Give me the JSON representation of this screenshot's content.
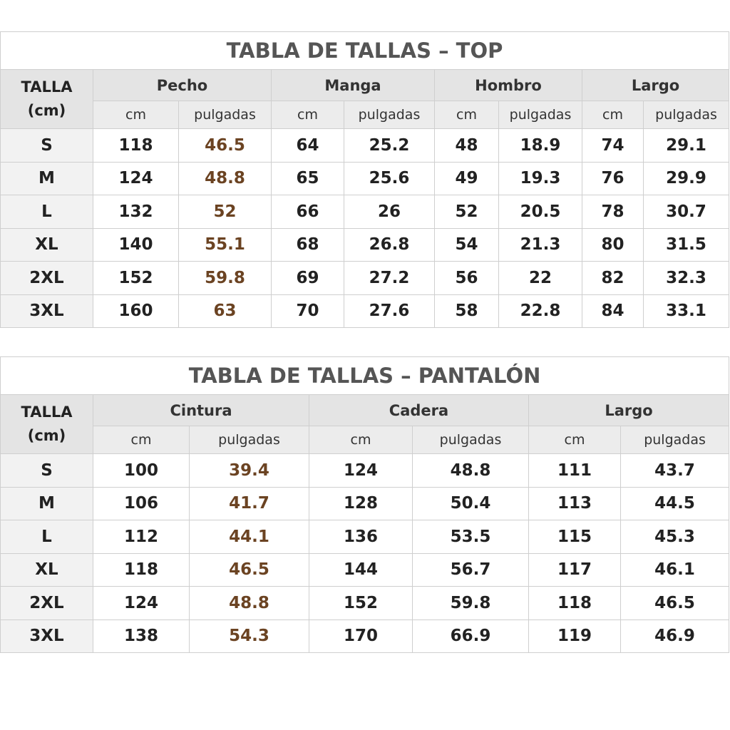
{
  "tables": [
    {
      "title": "TABLA DE TALLAS – TOP",
      "size_header": [
        "TALLA",
        "(cm)"
      ],
      "groups": [
        {
          "name": "Pecho",
          "units": [
            "cm",
            "pulgadas"
          ]
        },
        {
          "name": "Manga",
          "units": [
            "cm",
            "pulgadas"
          ]
        },
        {
          "name": "Hombro",
          "units": [
            "cm",
            "pulgadas"
          ]
        },
        {
          "name": "Largo",
          "units": [
            "cm",
            "pulgadas"
          ]
        }
      ],
      "rows": [
        {
          "size": "S",
          "values": [
            118,
            46.5,
            64,
            25.2,
            48,
            18.9,
            74,
            29.1
          ]
        },
        {
          "size": "M",
          "values": [
            124,
            48.8,
            65,
            25.6,
            49,
            19.3,
            76,
            29.9
          ]
        },
        {
          "size": "L",
          "values": [
            132,
            52,
            66,
            26,
            52,
            20.5,
            78,
            30.7
          ]
        },
        {
          "size": "XL",
          "values": [
            140,
            55.1,
            68,
            26.8,
            54,
            21.3,
            80,
            31.5
          ]
        },
        {
          "size": "2XL",
          "values": [
            152,
            59.8,
            69,
            27.2,
            56,
            22,
            82,
            32.3
          ]
        },
        {
          "size": "3XL",
          "values": [
            160,
            63,
            70,
            27.6,
            58,
            22.8,
            84,
            33.1
          ]
        }
      ]
    },
    {
      "title": "TABLA DE TALLAS – PANTALÓN",
      "size_header": [
        "TALLA",
        "(cm)"
      ],
      "groups": [
        {
          "name": "Cintura",
          "units": [
            "cm",
            "pulgadas"
          ]
        },
        {
          "name": "Cadera",
          "units": [
            "cm",
            "pulgadas"
          ]
        },
        {
          "name": "Largo",
          "units": [
            "cm",
            "pulgadas"
          ]
        }
      ],
      "rows": [
        {
          "size": "S",
          "values": [
            100,
            39.4,
            124,
            48.8,
            111,
            43.7
          ]
        },
        {
          "size": "M",
          "values": [
            106,
            41.7,
            128,
            50.4,
            113,
            44.5
          ]
        },
        {
          "size": "L",
          "values": [
            112,
            44.1,
            136,
            53.5,
            115,
            45.3
          ]
        },
        {
          "size": "XL",
          "values": [
            118,
            46.5,
            144,
            56.7,
            117,
            46.1
          ]
        },
        {
          "size": "2XL",
          "values": [
            124,
            48.8,
            152,
            59.8,
            118,
            46.5
          ]
        },
        {
          "size": "3XL",
          "values": [
            138,
            54.3,
            170,
            66.9,
            119,
            46.9
          ]
        }
      ]
    }
  ]
}
